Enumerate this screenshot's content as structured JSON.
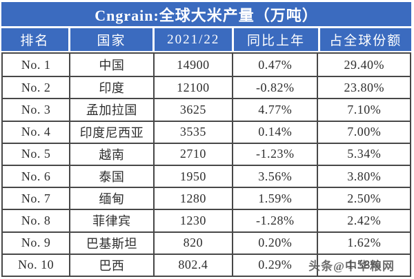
{
  "title": "Cngrain:全球大米产量（万吨）",
  "watermark": "头条@中华粮网",
  "colors": {
    "band_blue": "#3b6bbf",
    "border_dark": "#474747",
    "header_text": "#ffffff",
    "body_text": "#2e2e2e",
    "watermark_gray": "#4d4d4d",
    "background": "#ffffff"
  },
  "chart_data": {
    "type": "table",
    "title": "Cngrain:全球大米产量（万吨）",
    "unit": "万吨",
    "columns": [
      "排名",
      "国家",
      "2021/22",
      "同比上年",
      "占全球份额"
    ],
    "rows": [
      {
        "rank": "No. 1",
        "country": "中国",
        "production": "14900",
        "yoy": "0.47%",
        "share": "29.40%"
      },
      {
        "rank": "No. 2",
        "country": "印度",
        "production": "12100",
        "yoy": "-0.82%",
        "share": "23.80%"
      },
      {
        "rank": "No. 3",
        "country": "孟加拉国",
        "production": "3625",
        "yoy": "4.77%",
        "share": "7.10%"
      },
      {
        "rank": "No. 4",
        "country": "印度尼西亚",
        "production": "3535",
        "yoy": "0.14%",
        "share": "7.00%"
      },
      {
        "rank": "No. 5",
        "country": "越南",
        "production": "2710",
        "yoy": "-1.23%",
        "share": "5.34%"
      },
      {
        "rank": "No. 6",
        "country": "泰国",
        "production": "1950",
        "yoy": "3.56%",
        "share": "3.80%"
      },
      {
        "rank": "No. 7",
        "country": "缅甸",
        "production": "1280",
        "yoy": "1.59%",
        "share": "2.50%"
      },
      {
        "rank": "No. 8",
        "country": "菲律宾",
        "production": "1230",
        "yoy": "-1.28%",
        "share": "2.42%"
      },
      {
        "rank": "No. 9",
        "country": "巴基斯坦",
        "production": "820",
        "yoy": "0.20%",
        "share": "1.62%"
      },
      {
        "rank": "No. 10",
        "country": "巴西",
        "production": "802.4",
        "yoy": "0.29%",
        "share": "1.58%"
      }
    ]
  }
}
